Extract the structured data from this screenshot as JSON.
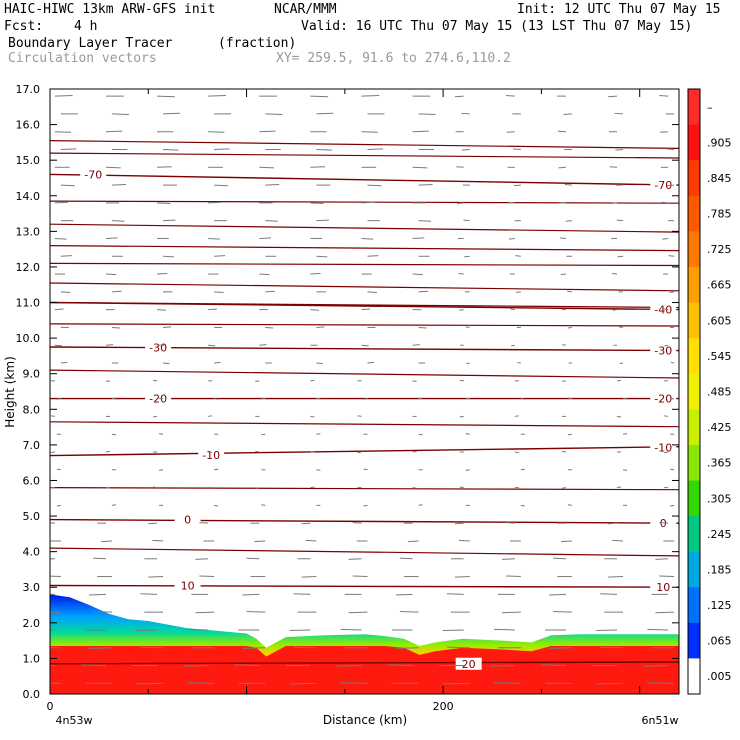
{
  "header": {
    "model": "HAIC-HIWC 13km ARW-GFS init",
    "org": "NCAR/MMM",
    "init": "Init: 12 UTC Thu 07 May 15",
    "fcst_label": "Fcst:",
    "fcst_value": "4 h",
    "valid": "Valid: 16 UTC Thu 07 May 15 (13 LST Thu 07 May 15)",
    "field": "Boundary Layer Tracer",
    "units": "(fraction)",
    "overlay": "Circulation vectors",
    "xy": "XY= 259.5, 91.6 to 274.6,110.2"
  },
  "chart_data": {
    "type": "heatmap",
    "xlabel": "Distance (km)",
    "ylabel": "Height (km)",
    "xlim": [
      0,
      320
    ],
    "ylim": [
      0,
      17
    ],
    "x_ticks": [
      {
        "value": 0,
        "label": "0"
      },
      {
        "value": 200,
        "label": "200"
      }
    ],
    "x_end_labels": {
      "left": "4n53w",
      "right": "6n51w"
    },
    "y_ticks": [
      0,
      1,
      2,
      3,
      4,
      5,
      6,
      7,
      8,
      9,
      10,
      11,
      12,
      13,
      14,
      15,
      16,
      17
    ],
    "y_tick_labels": [
      "0.0",
      "1.0",
      "2.0",
      "3.0",
      "4.0",
      "5.0",
      "6.0",
      "7.0",
      "8.0",
      "9.0",
      "10.0",
      "11.0",
      "12.0",
      "13.0",
      "14.0",
      "15.0",
      "16.0",
      "17.0"
    ],
    "colorbar": {
      "labels": [
        "–",
        ".905",
        ".845",
        ".785",
        ".725",
        ".665",
        ".605",
        ".545",
        ".485",
        ".425",
        ".365",
        ".305",
        ".245",
        ".185",
        ".125",
        ".065",
        ".005"
      ],
      "colors": [
        "#ff2a2a",
        "#ff1010",
        "#ff3a00",
        "#ff5a00",
        "#ff7a00",
        "#ff9e00",
        "#ffc000",
        "#ffe000",
        "#f0f000",
        "#c8f000",
        "#8ae800",
        "#33d800",
        "#00c880",
        "#00a8e0",
        "#0070ff",
        "#0030ff",
        "#ffffff"
      ]
    },
    "tracer_top_km": [
      [
        0,
        2.8
      ],
      [
        10,
        2.72
      ],
      [
        20,
        2.5
      ],
      [
        30,
        2.25
      ],
      [
        40,
        2.1
      ],
      [
        50,
        2.05
      ],
      [
        60,
        1.95
      ],
      [
        70,
        1.85
      ],
      [
        80,
        1.8
      ],
      [
        90,
        1.75
      ],
      [
        100,
        1.7
      ],
      [
        105,
        1.55
      ],
      [
        110,
        1.3
      ],
      [
        115,
        1.45
      ],
      [
        120,
        1.6
      ],
      [
        140,
        1.65
      ],
      [
        160,
        1.68
      ],
      [
        170,
        1.63
      ],
      [
        180,
        1.55
      ],
      [
        188,
        1.35
      ],
      [
        196,
        1.45
      ],
      [
        210,
        1.55
      ],
      [
        230,
        1.5
      ],
      [
        245,
        1.45
      ],
      [
        255,
        1.65
      ],
      [
        270,
        1.68
      ],
      [
        300,
        1.68
      ],
      [
        320,
        1.68
      ]
    ],
    "isotherms": [
      {
        "label": "-70",
        "y_left": 14.6,
        "y_right": 14.3
      },
      {
        "label": "-40",
        "y_left": 11.0,
        "y_right": 10.8
      },
      {
        "label": "-30",
        "y_left": 9.75,
        "y_right": 9.65
      },
      {
        "label": "-20",
        "y_left": 8.3,
        "y_right": 8.3
      },
      {
        "label": "-10",
        "y_left": 6.7,
        "y_right": 6.95
      },
      {
        "label": "0",
        "y_left": 4.9,
        "y_right": 4.8
      },
      {
        "label": "10",
        "y_left": 3.05,
        "y_right": 3.0
      },
      {
        "label": "20",
        "y_left": 0.85,
        "y_right": 0.9
      }
    ],
    "isotherm_label_positions": [
      {
        "label": "-70",
        "x": 22,
        "y": 14.6
      },
      {
        "label": "-70",
        "x": 312,
        "y": 14.3
      },
      {
        "label": "-40",
        "x": 312,
        "y": 10.8
      },
      {
        "label": "-30",
        "x": 55,
        "y": 9.73
      },
      {
        "label": "-30",
        "x": 312,
        "y": 9.65
      },
      {
        "label": "-20",
        "x": 55,
        "y": 8.3
      },
      {
        "label": "-20",
        "x": 312,
        "y": 8.3
      },
      {
        "label": "-10",
        "x": 82,
        "y": 6.72
      },
      {
        "label": "-10",
        "x": 312,
        "y": 6.93
      },
      {
        "label": "0",
        "x": 70,
        "y": 4.9
      },
      {
        "label": "0",
        "x": 312,
        "y": 4.8
      },
      {
        "label": "10",
        "x": 70,
        "y": 3.05
      },
      {
        "label": "10",
        "x": 312,
        "y": 3.0
      },
      {
        "label": "20",
        "x": 213,
        "y": 0.85
      }
    ]
  },
  "colors": {
    "isotherm": "#7b0000",
    "vector": "#7a7a7a",
    "axis": "#000000"
  }
}
